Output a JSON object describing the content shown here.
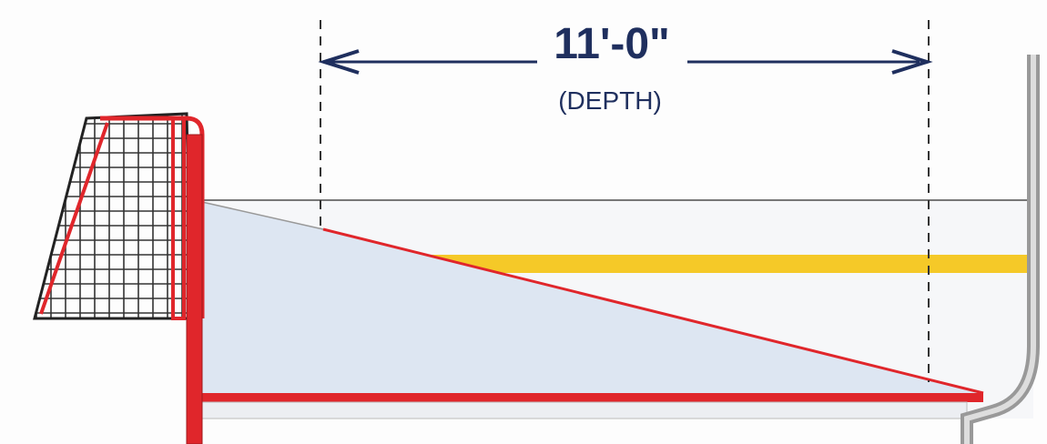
{
  "dimension": {
    "label": "11'-0\"",
    "caption": "(DEPTH)"
  }
}
